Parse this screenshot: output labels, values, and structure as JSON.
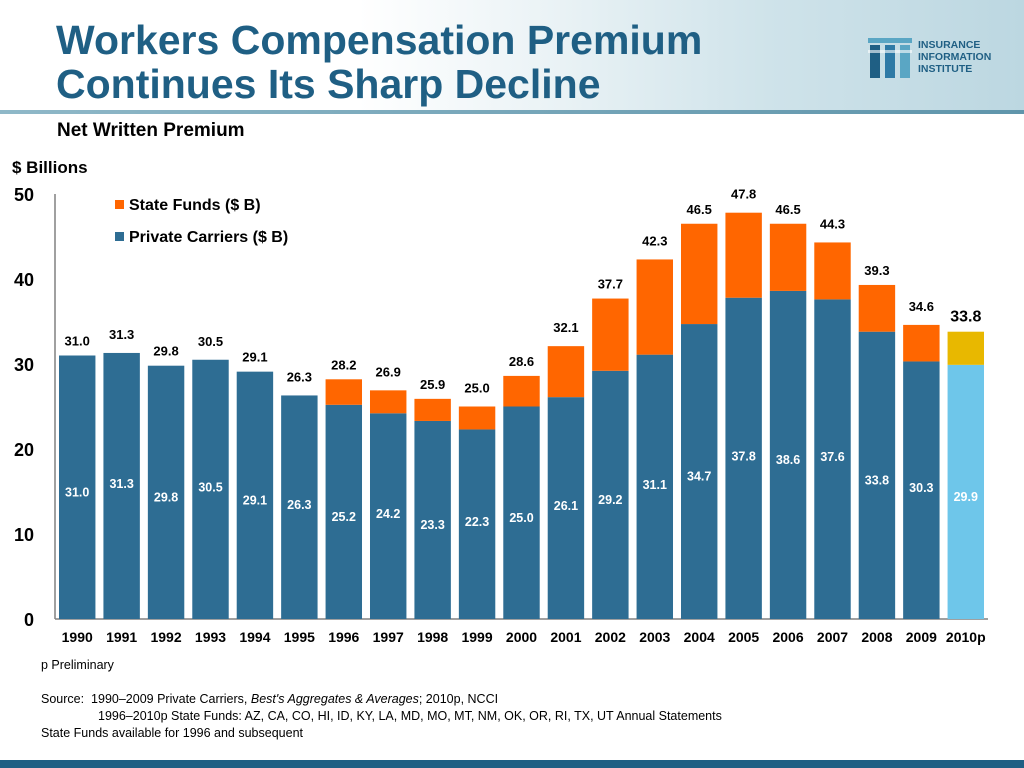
{
  "header": {
    "title": "Workers Compensation Premium\nContinues Its Sharp Decline",
    "subtitle": "Net Written Premium",
    "logo": {
      "lines": [
        "INSURANCE",
        "INFORMATION",
        "INSTITUTE"
      ],
      "icon": "iii-logo-icon"
    }
  },
  "chart_data": {
    "type": "bar",
    "stacked": true,
    "ylabel": "$ Billions",
    "ylim": [
      0,
      50
    ],
    "yticks": [
      0,
      10,
      20,
      30,
      40,
      50
    ],
    "grid": false,
    "legend_position": "top-left",
    "categories": [
      "1990",
      "1991",
      "1992",
      "1993",
      "1994",
      "1995",
      "1996",
      "1997",
      "1998",
      "1999",
      "2000",
      "2001",
      "2002",
      "2003",
      "2004",
      "2005",
      "2006",
      "2007",
      "2008",
      "2009",
      "2010p"
    ],
    "series": [
      {
        "name": "Private Carriers ($ B)",
        "color": "#2e6d93",
        "values": [
          31.0,
          31.3,
          29.8,
          30.5,
          29.1,
          26.3,
          25.2,
          24.2,
          23.3,
          22.3,
          25.0,
          26.1,
          29.2,
          31.1,
          34.7,
          37.8,
          38.6,
          37.6,
          33.8,
          30.3,
          29.9
        ],
        "value_labels": [
          "31.0",
          "31.3",
          "29.8",
          "30.5",
          "29.1",
          "26.3",
          "25.2",
          "24.2",
          "23.3",
          "22.3",
          "25.0",
          "26.1",
          "29.2",
          "31.1",
          "34.7",
          "37.8",
          "38.6",
          "37.6",
          "33.8",
          "30.3",
          "29.9"
        ]
      },
      {
        "name": "State Funds ($ B)",
        "color": "#ff6600",
        "values": [
          0,
          0,
          0,
          0,
          0,
          0,
          3.0,
          2.7,
          2.6,
          2.7,
          3.6,
          6.0,
          8.5,
          11.2,
          11.8,
          10.0,
          7.9,
          6.7,
          5.5,
          4.3,
          3.9
        ]
      }
    ],
    "totals": [
      "31.0",
      "31.3",
      "29.8",
      "30.5",
      "29.1",
      "26.3",
      "28.2",
      "26.9",
      "25.9",
      "25.0",
      "28.6",
      "32.1",
      "37.7",
      "42.3",
      "46.5",
      "47.8",
      "46.5",
      "44.3",
      "39.3",
      "34.6",
      "33.8"
    ],
    "highlight": {
      "category": "2010p",
      "private_color": "#6ec6ea",
      "state_color": "#e8b800"
    }
  },
  "footnotes": {
    "preliminary": "p Preliminary",
    "source_label": "Source:",
    "source_line1_a": "1990–2009 Private Carriers, ",
    "source_line1_b": "Best's Aggregates & Averages",
    "source_line1_c": "; 2010p, NCCI",
    "source_line2": "1996–2010p State Funds: AZ, CA, CO, HI, ID, KY, LA, MD, MO, MT, NM, OK, OR, RI, TX, UT Annual Statements",
    "note": "State Funds available for 1996 and subsequent"
  }
}
